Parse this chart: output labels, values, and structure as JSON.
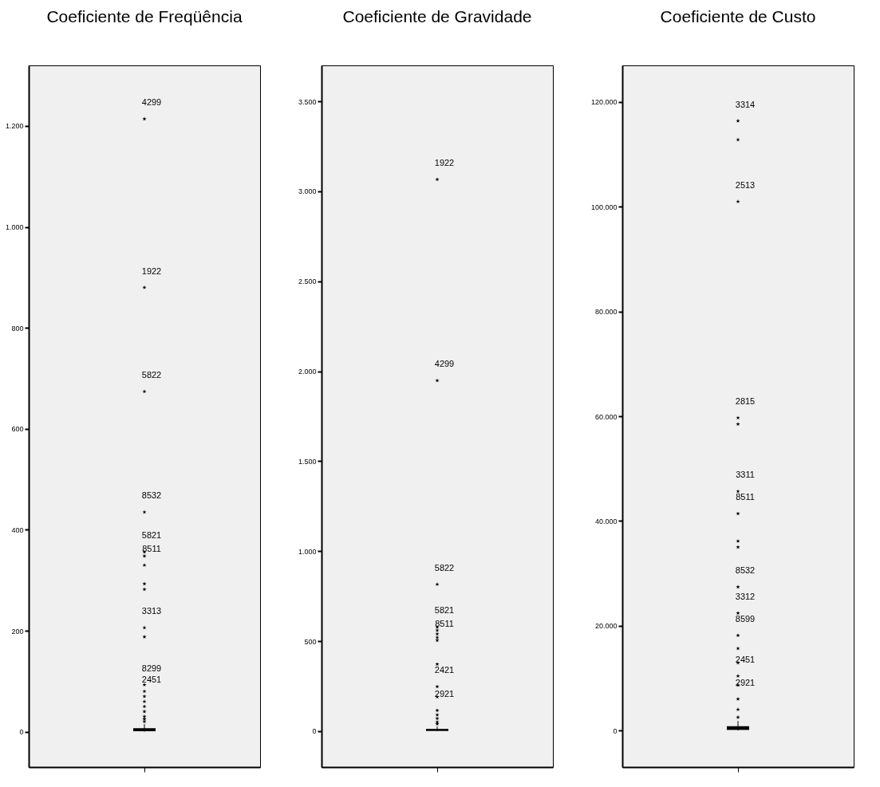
{
  "chart_data": [
    {
      "type": "box",
      "title": "Coeficiente de Freqüência",
      "categories": [
        null
      ],
      "marker": "star",
      "tick_labels": "y",
      "grid": false,
      "boxes": [
        {
          "low": 0,
          "q1": 1,
          "median": 3,
          "q3": 7,
          "high": 15,
          "outliers": [
            1214,
            880,
            674,
            435,
            356,
            348,
            330,
            293,
            282,
            206,
            188,
            93,
            80,
            70,
            60,
            50,
            40,
            30,
            25,
            20
          ]
        }
      ],
      "ylim": [
        -70,
        1320
      ],
      "yticks": [
        0,
        200,
        400,
        600,
        800,
        {
          "value": 1000,
          "label": "1.000"
        },
        {
          "value": 1200,
          "label": "1.200"
        }
      ],
      "annotations": [
        "4299",
        "1922",
        "5822",
        "8532",
        "5821",
        "8511",
        "3313",
        "8299",
        "2451"
      ]
    },
    {
      "type": "box",
      "title": "Coeficiente de Gravidade",
      "categories": [
        null
      ],
      "marker": "star",
      "tick_labels": "y",
      "grid": false,
      "boxes": [
        {
          "low": 0,
          "q1": 2,
          "median": 5,
          "q3": 12,
          "high": 25,
          "outliers": [
            3066,
            1948,
            816,
            578,
            560,
            540,
            520,
            504,
            372,
            247,
            190,
            115,
            90,
            70,
            50,
            40
          ]
        }
      ],
      "ylim": [
        -200,
        3700
      ],
      "yticks": [
        0,
        500,
        {
          "value": 1000,
          "label": "1.000"
        },
        {
          "value": 1500,
          "label": "1.500"
        },
        {
          "value": 2000,
          "label": "2.000"
        },
        {
          "value": 2500,
          "label": "2.500"
        },
        {
          "value": 3000,
          "label": "3.000"
        },
        {
          "value": 3500,
          "label": "3.500"
        }
      ],
      "annotations": [
        "1922",
        "4299",
        "5822",
        "5821",
        "8511",
        "2421",
        "2921"
      ]
    },
    {
      "type": "box",
      "title": "Coeficiente de Custo",
      "categories": [
        null
      ],
      "marker": "star",
      "tick_labels": "y",
      "grid": false,
      "boxes": [
        {
          "low": 0,
          "q1": 100,
          "median": 300,
          "q3": 800,
          "high": 1800,
          "outliers": [
            116400,
            112800,
            101000,
            59700,
            58500,
            45650,
            41400,
            36150,
            35000,
            27400,
            22400,
            18150,
            15650,
            12900,
            10400,
            8650,
            6000,
            4000,
            2500
          ]
        }
      ],
      "ylim": [
        -7000,
        127000
      ],
      "yticks": [
        0,
        {
          "value": 20000,
          "label": "20.000"
        },
        {
          "value": 40000,
          "label": "40.000"
        },
        {
          "value": 60000,
          "label": "60.000"
        },
        {
          "value": 80000,
          "label": "80.000"
        },
        {
          "value": 100000,
          "label": "100.000"
        },
        {
          "value": 120000,
          "label": "120.000"
        }
      ],
      "annotations": [
        "3314",
        "2513",
        "2815",
        "3311",
        "8511",
        "8532",
        "3312",
        "8599",
        "2451",
        "2921"
      ]
    }
  ]
}
